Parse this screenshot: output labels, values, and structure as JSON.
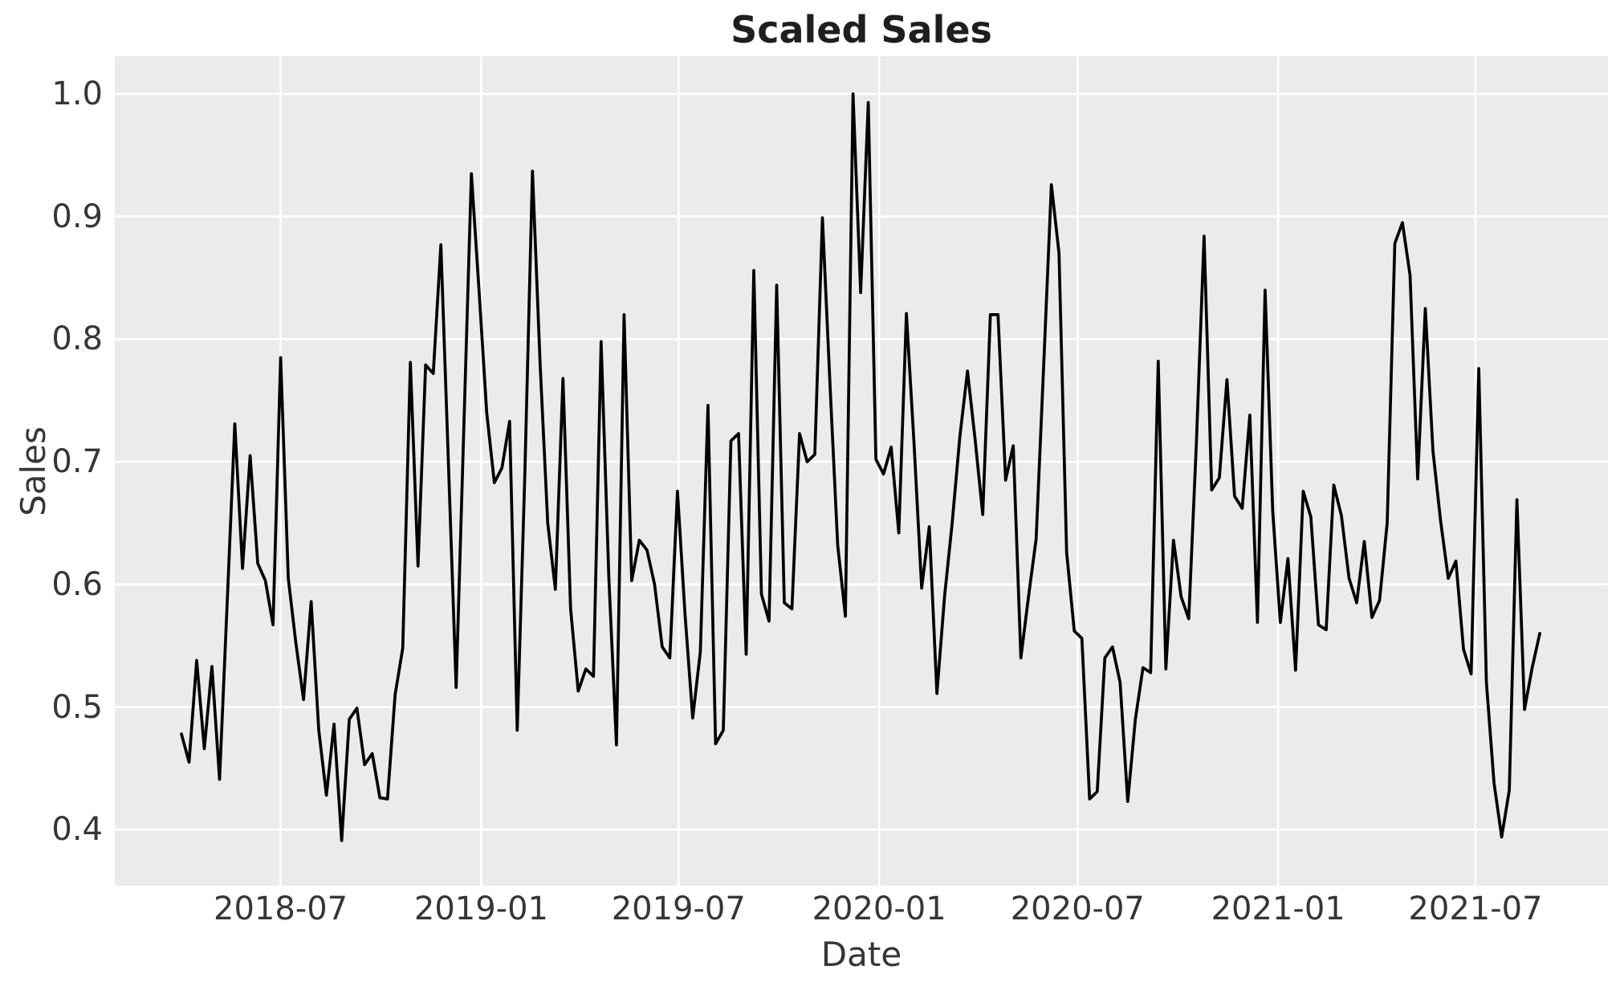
{
  "figure": {
    "title": "Scaled Sales",
    "xlabel": "Date",
    "ylabel": "Sales"
  },
  "chart_data": {
    "type": "line",
    "title": "Scaled Sales",
    "xlabel": "Date",
    "ylabel": "Sales",
    "legend": "none",
    "grid": "major white gridlines on grey panel",
    "panel_color": "#ebebeb",
    "grid_color": "#ffffff",
    "line_color": "#000000",
    "line_width": 3.7,
    "x_start": "2018-04-01",
    "x_end": "2021-08-29",
    "frequency": "weekly",
    "ylim": [
      0.354,
      1.031
    ],
    "yticks": [
      {
        "value": 1.0,
        "label": "1.0"
      },
      {
        "value": 0.9,
        "label": "0.9"
      },
      {
        "value": 0.8,
        "label": "0.8"
      },
      {
        "value": 0.7,
        "label": "0.7"
      },
      {
        "value": 0.6,
        "label": "0.6"
      },
      {
        "value": 0.5,
        "label": "0.5"
      },
      {
        "value": 0.4,
        "label": "0.4"
      }
    ],
    "xticks": [
      {
        "date": "2018-07-01",
        "label": "2018-07"
      },
      {
        "date": "2019-01-01",
        "label": "2019-01"
      },
      {
        "date": "2019-07-01",
        "label": "2019-07"
      },
      {
        "date": "2020-01-01",
        "label": "2020-01"
      },
      {
        "date": "2020-07-01",
        "label": "2020-07"
      },
      {
        "date": "2021-01-01",
        "label": "2021-01"
      },
      {
        "date": "2021-07-01",
        "label": "2021-07"
      }
    ],
    "values": [
      0.478,
      0.455,
      0.538,
      0.466,
      0.533,
      0.441,
      0.585,
      0.731,
      0.613,
      0.705,
      0.617,
      0.603,
      0.567,
      0.785,
      0.605,
      0.552,
      0.506,
      0.586,
      0.481,
      0.428,
      0.486,
      0.391,
      0.49,
      0.499,
      0.453,
      0.462,
      0.426,
      0.425,
      0.51,
      0.548,
      0.781,
      0.615,
      0.779,
      0.772,
      0.877,
      0.697,
      0.516,
      0.726,
      0.935,
      0.84,
      0.74,
      0.683,
      0.695,
      0.733,
      0.481,
      0.69,
      0.937,
      0.78,
      0.65,
      0.596,
      0.768,
      0.58,
      0.513,
      0.531,
      0.525,
      0.798,
      0.606,
      0.469,
      0.82,
      0.603,
      0.636,
      0.628,
      0.6,
      0.549,
      0.54,
      0.676,
      0.575,
      0.491,
      0.545,
      0.746,
      0.47,
      0.481,
      0.717,
      0.723,
      0.543,
      0.856,
      0.592,
      0.57,
      0.844,
      0.585,
      0.58,
      0.723,
      0.7,
      0.706,
      0.899,
      0.762,
      0.632,
      0.574,
      1.0,
      0.838,
      0.993,
      0.702,
      0.69,
      0.712,
      0.642,
      0.821,
      0.715,
      0.597,
      0.647,
      0.511,
      0.59,
      0.65,
      0.72,
      0.774,
      0.718,
      0.657,
      0.82,
      0.82,
      0.685,
      0.713,
      0.54,
      0.59,
      0.637,
      0.78,
      0.926,
      0.87,
      0.626,
      0.562,
      0.556,
      0.425,
      0.431,
      0.54,
      0.549,
      0.52,
      0.423,
      0.49,
      0.532,
      0.528,
      0.782,
      0.531,
      0.636,
      0.59,
      0.572,
      0.715,
      0.884,
      0.677,
      0.687,
      0.767,
      0.672,
      0.662,
      0.738,
      0.569,
      0.84,
      0.66,
      0.569,
      0.621,
      0.53,
      0.676,
      0.655,
      0.567,
      0.563,
      0.681,
      0.656,
      0.605,
      0.585,
      0.635,
      0.573,
      0.587,
      0.65,
      0.878,
      0.895,
      0.852,
      0.686,
      0.825,
      0.709,
      0.652,
      0.605,
      0.619,
      0.547,
      0.527,
      0.776,
      0.52,
      0.438,
      0.394,
      0.432,
      0.669,
      0.498,
      0.532,
      0.56
    ]
  }
}
